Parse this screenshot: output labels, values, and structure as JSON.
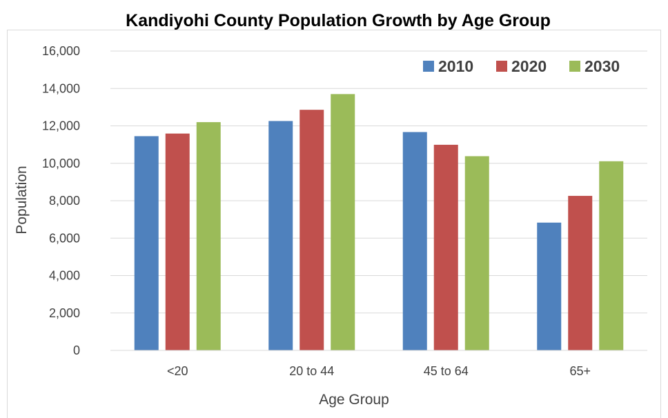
{
  "chart_data": {
    "type": "bar",
    "title": "Kandiyohi County Population Growth by Age Group",
    "xlabel": "Age Group",
    "ylabel": "Population",
    "categories": [
      "<20",
      "20 to 44",
      "45 to 64",
      "65+"
    ],
    "series": [
      {
        "name": "2010",
        "color": "#4f81bd",
        "values": [
          11450,
          12260,
          11670,
          6830
        ]
      },
      {
        "name": "2020",
        "color": "#c0504d",
        "values": [
          11590,
          12860,
          10990,
          8260
        ]
      },
      {
        "name": "2030",
        "color": "#9bbb59",
        "values": [
          12200,
          13700,
          10380,
          10110
        ]
      }
    ],
    "ylim": [
      0,
      16000
    ],
    "yticks": [
      "0",
      "2,000",
      "4,000",
      "6,000",
      "8,000",
      "10,000",
      "12,000",
      "14,000",
      "16,000"
    ],
    "grid": true,
    "gridline_color": "#d9d9d9",
    "legend_position": "top-right"
  }
}
